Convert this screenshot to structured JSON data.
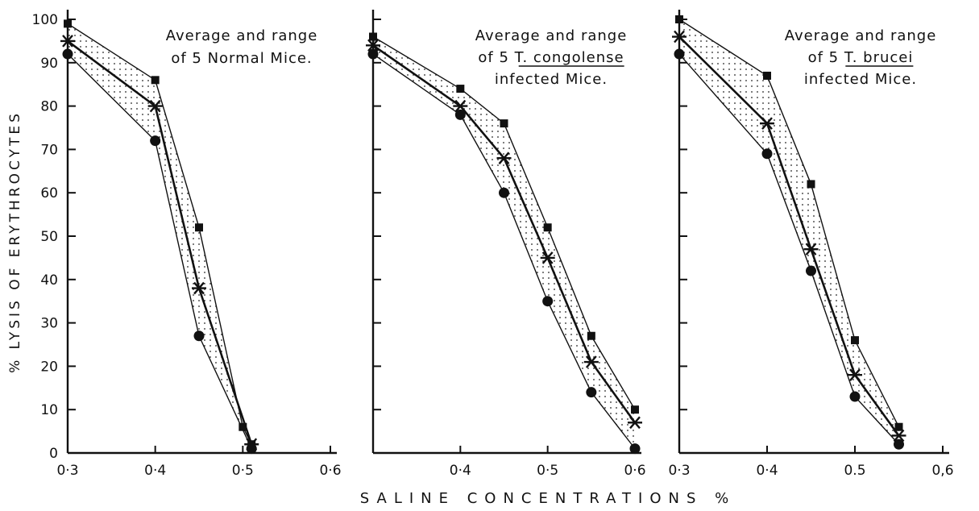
{
  "chart_data": {
    "type": "line",
    "ylabel": "% LYSIS OF ERYTHROCYTES",
    "xlabel": "SALINE CONCENTRATIONS %",
    "ylim": [
      0,
      100
    ],
    "yticks": [
      0,
      10,
      20,
      30,
      40,
      50,
      60,
      70,
      80,
      90,
      100
    ],
    "range_fill": "dotted band between maximum and minimum",
    "panels": [
      {
        "title_lines": [
          "Average and range",
          "of 5 Normal Mice."
        ],
        "xlim": [
          0.3,
          0.6
        ],
        "xtick_labels": [
          "0·3",
          "0·4",
          "0·5",
          "0·6"
        ],
        "xticks": [
          0.3,
          0.4,
          0.5,
          0.6
        ],
        "series": [
          {
            "role": "maximum",
            "marker": "square",
            "x": [
              0.3,
              0.4,
              0.45,
              0.5,
              0.51
            ],
            "y": [
              99,
              86,
              52,
              6,
              2
            ]
          },
          {
            "role": "average",
            "marker": "star",
            "x": [
              0.3,
              0.4,
              0.45,
              0.51
            ],
            "y": [
              95,
              80,
              38,
              2
            ]
          },
          {
            "role": "minimum",
            "marker": "circle",
            "x": [
              0.3,
              0.4,
              0.45,
              0.51
            ],
            "y": [
              92,
              72,
              27,
              1
            ]
          }
        ]
      },
      {
        "title_lines": [
          "Average and range",
          "of 5 T. congolense",
          "infected Mice."
        ],
        "underline": "T. congolense",
        "xlim": [
          0.3,
          0.6
        ],
        "xtick_labels": [
          "",
          "0·4",
          "0·5",
          "0·6"
        ],
        "xticks": [
          0.3,
          0.4,
          0.5,
          0.6
        ],
        "series": [
          {
            "role": "maximum",
            "marker": "square",
            "x": [
              0.3,
              0.4,
              0.45,
              0.5,
              0.55,
              0.6
            ],
            "y": [
              96,
              84,
              76,
              52,
              27,
              10
            ]
          },
          {
            "role": "average",
            "marker": "star",
            "x": [
              0.3,
              0.4,
              0.45,
              0.5,
              0.55,
              0.6
            ],
            "y": [
              94,
              80,
              68,
              45,
              21,
              7
            ]
          },
          {
            "role": "minimum",
            "marker": "circle",
            "x": [
              0.3,
              0.4,
              0.45,
              0.5,
              0.55,
              0.6
            ],
            "y": [
              92,
              78,
              60,
              35,
              14,
              1
            ]
          }
        ]
      },
      {
        "title_lines": [
          "Average and range",
          "of 5 T. brucei",
          "infected Mice."
        ],
        "underline": "T. brucei",
        "xlim": [
          0.3,
          0.6
        ],
        "xtick_labels": [
          "0·3",
          "0·4",
          "0.5",
          "0,6"
        ],
        "xticks": [
          0.3,
          0.4,
          0.5,
          0.6
        ],
        "series": [
          {
            "role": "maximum",
            "marker": "square",
            "x": [
              0.3,
              0.4,
              0.45,
              0.5,
              0.55
            ],
            "y": [
              100,
              87,
              62,
              26,
              6
            ]
          },
          {
            "role": "average",
            "marker": "star",
            "x": [
              0.3,
              0.4,
              0.45,
              0.5,
              0.55
            ],
            "y": [
              96,
              76,
              47,
              18,
              4
            ]
          },
          {
            "role": "minimum",
            "marker": "circle",
            "x": [
              0.3,
              0.4,
              0.45,
              0.5,
              0.55
            ],
            "y": [
              92,
              69,
              42,
              13,
              2
            ]
          }
        ]
      }
    ]
  }
}
